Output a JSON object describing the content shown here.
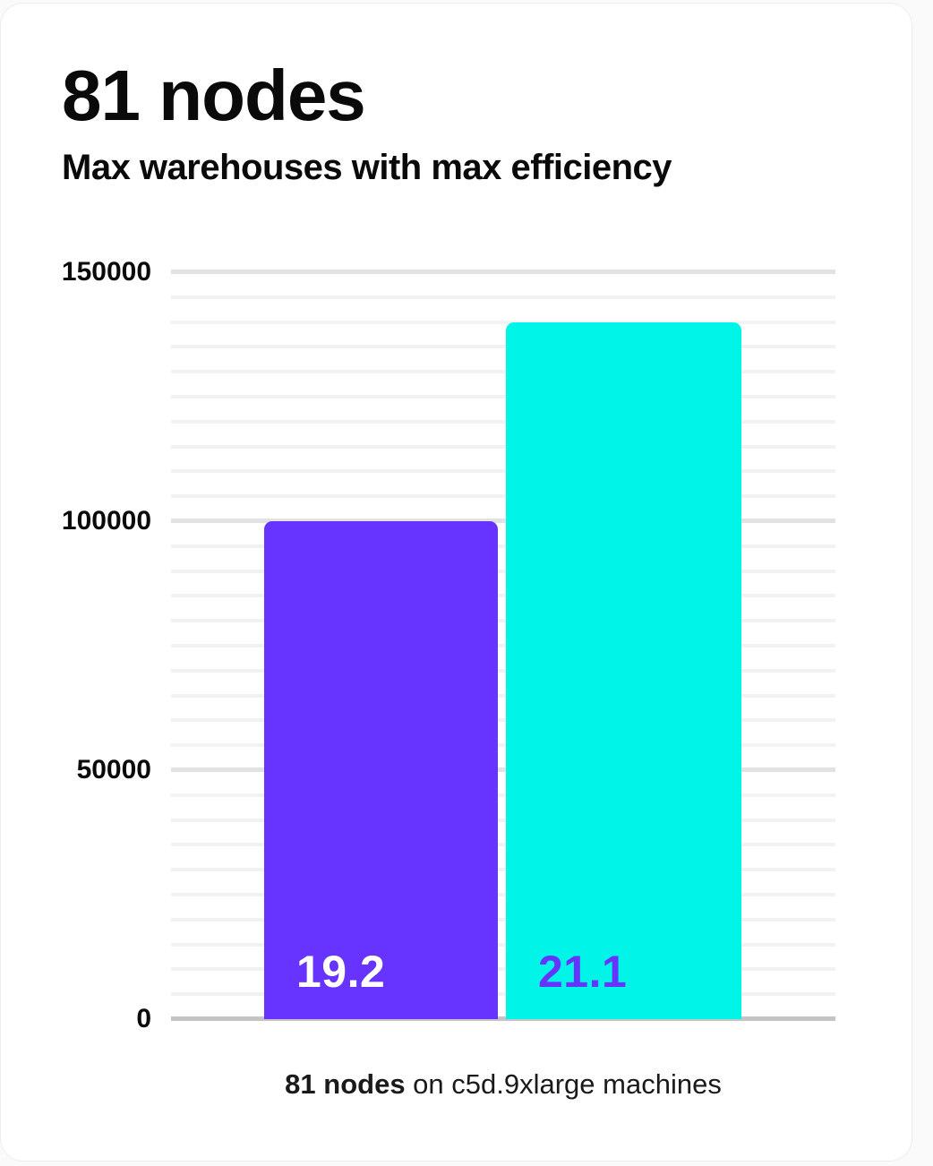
{
  "card": {
    "title": "81 nodes",
    "subtitle": "Max warehouses with max efficiency",
    "caption": {
      "bold": "81 nodes",
      "regular": " on c5d.9xlarge machines"
    }
  },
  "chart_data": {
    "type": "bar",
    "title": "81 nodes",
    "subtitle": "Max warehouses with max efficiency",
    "categories": [
      "19.2",
      "21.1"
    ],
    "values": [
      100000,
      140000
    ],
    "bar_labels": [
      "19.2",
      "21.1"
    ],
    "xlabel": "",
    "ylabel": "",
    "ylim": [
      0,
      150000
    ],
    "ytick_values": [
      0,
      50000,
      100000,
      150000
    ],
    "ytick_labels": [
      "0",
      "50000",
      "100000",
      "150000"
    ],
    "minor_grid_step": 5000,
    "grid": "horizontal, minor every 5000, major every 50000",
    "legend": "none",
    "caption": "81 nodes on c5d.9xlarge machines",
    "colors": {
      "bars": [
        "#6633FF",
        "#00F5E9"
      ],
      "bar_labels": [
        "#FFFFFF",
        "#6633FF"
      ],
      "minor_gridline": "#F2F2F2",
      "major_gridline": "#E2E2E2",
      "axis_baseline": "#C4C4C4",
      "text": "#0A0A0A",
      "card_background": "#FFFFFF"
    }
  }
}
